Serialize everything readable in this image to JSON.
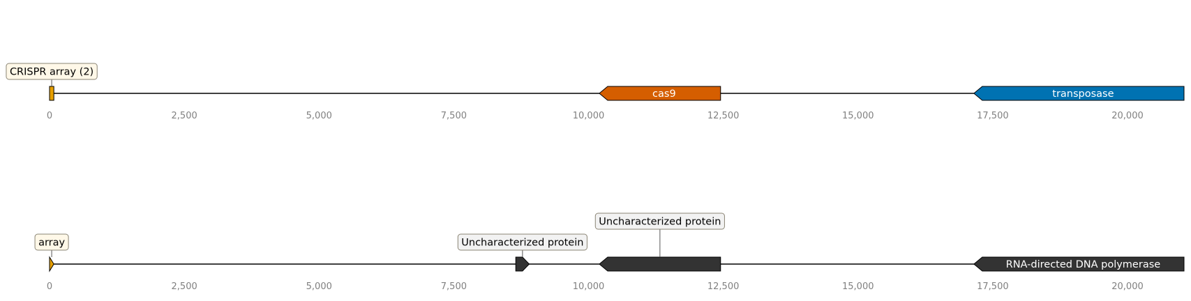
{
  "tracks": [
    {
      "id": "track-1",
      "axis": {
        "ticks": [
          {
            "value": 0,
            "label": "0"
          },
          {
            "value": 2500,
            "label": "2,500"
          },
          {
            "value": 5000,
            "label": "5,000"
          },
          {
            "value": 7500,
            "label": "7,500"
          },
          {
            "value": 10000,
            "label": "10,000"
          },
          {
            "value": 12500,
            "label": "12,500"
          },
          {
            "value": 15000,
            "label": "15,000"
          },
          {
            "value": 17500,
            "label": "17,500"
          },
          {
            "value": 20000,
            "label": "20,000"
          }
        ]
      },
      "features": [
        {
          "name": "crispr-array-feature",
          "start": 0,
          "end": 80,
          "strand": 0,
          "color": "#E69F00",
          "label": "CRISPR array (2)",
          "label_style": "box",
          "box_fill": "#FFF8E8",
          "box_level": 1
        },
        {
          "name": "cas9-feature",
          "start": 10200,
          "end": 12450,
          "strand": -1,
          "color": "#D55E00",
          "label": "cas9",
          "label_style": "inline",
          "text_color": "#ffffff"
        },
        {
          "name": "transposase-feature",
          "start": 17150,
          "end": 21100,
          "strand": -1,
          "color": "#0072B2",
          "label": "transposase",
          "label_style": "inline",
          "text_color": "#ffffff"
        }
      ]
    },
    {
      "id": "track-2",
      "axis": {
        "ticks": [
          {
            "value": 0,
            "label": "0"
          },
          {
            "value": 2500,
            "label": "2,500"
          },
          {
            "value": 5000,
            "label": "5,000"
          },
          {
            "value": 7500,
            "label": "7,500"
          },
          {
            "value": 10000,
            "label": "10,000"
          },
          {
            "value": 12500,
            "label": "12,500"
          },
          {
            "value": 15000,
            "label": "15,000"
          },
          {
            "value": 17500,
            "label": "17,500"
          },
          {
            "value": 20000,
            "label": "20,000"
          }
        ]
      },
      "features": [
        {
          "name": "array-feature",
          "start": 0,
          "end": 80,
          "strand": 1,
          "color": "#E69F00",
          "label": "array",
          "label_style": "box",
          "box_fill": "#FFF8E8",
          "box_level": 1
        },
        {
          "name": "uncharacterized-protein-1-feature",
          "start": 8650,
          "end": 8900,
          "strand": 1,
          "color": "#333333",
          "label": "Uncharacterized protein",
          "label_style": "box",
          "box_fill": "#F2F2F2",
          "box_level": 1
        },
        {
          "name": "uncharacterized-protein-2-feature",
          "start": 10200,
          "end": 12450,
          "strand": -1,
          "color": "#333333",
          "label": "Uncharacterized protein",
          "label_style": "box",
          "box_fill": "#F2F2F2",
          "box_level": 2
        },
        {
          "name": "rna-directed-dna-polymerase-feature",
          "start": 17150,
          "end": 21100,
          "strand": -1,
          "color": "#333333",
          "label": "RNA-directed DNA polymerase",
          "label_style": "inline",
          "text_color": "#ffffff"
        }
      ]
    }
  ],
  "colors": {
    "backbone": "#000000",
    "tick_label": "#808080",
    "box_border": "#8A8474",
    "connector": "#555555"
  }
}
